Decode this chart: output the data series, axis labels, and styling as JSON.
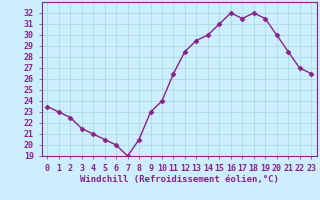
{
  "x": [
    0,
    1,
    2,
    3,
    4,
    5,
    6,
    7,
    8,
    9,
    10,
    11,
    12,
    13,
    14,
    15,
    16,
    17,
    18,
    19,
    20,
    21,
    22,
    23
  ],
  "y": [
    23.5,
    23.0,
    22.5,
    21.5,
    21.0,
    20.5,
    20.0,
    19.0,
    20.5,
    23.0,
    24.0,
    26.5,
    28.5,
    29.5,
    30.0,
    31.0,
    32.0,
    31.5,
    32.0,
    31.5,
    30.0,
    28.5,
    27.0,
    26.5
  ],
  "line_color": "#882288",
  "marker": "D",
  "markersize": 2.5,
  "linewidth": 1.0,
  "bg_color": "#cceeff",
  "grid_color": "#aadddd",
  "xlabel": "Windchill (Refroidissement éolien,°C)",
  "xlabel_fontsize": 6.5,
  "tick_fontsize": 6.0,
  "xlim": [
    -0.5,
    23.5
  ],
  "ylim": [
    19,
    33
  ],
  "yticks": [
    19,
    20,
    21,
    22,
    23,
    24,
    25,
    26,
    27,
    28,
    29,
    30,
    31,
    32
  ],
  "xticks": [
    0,
    1,
    2,
    3,
    4,
    5,
    6,
    7,
    8,
    9,
    10,
    11,
    12,
    13,
    14,
    15,
    16,
    17,
    18,
    19,
    20,
    21,
    22,
    23
  ],
  "spine_color": "#882288",
  "label_color": "#882288"
}
